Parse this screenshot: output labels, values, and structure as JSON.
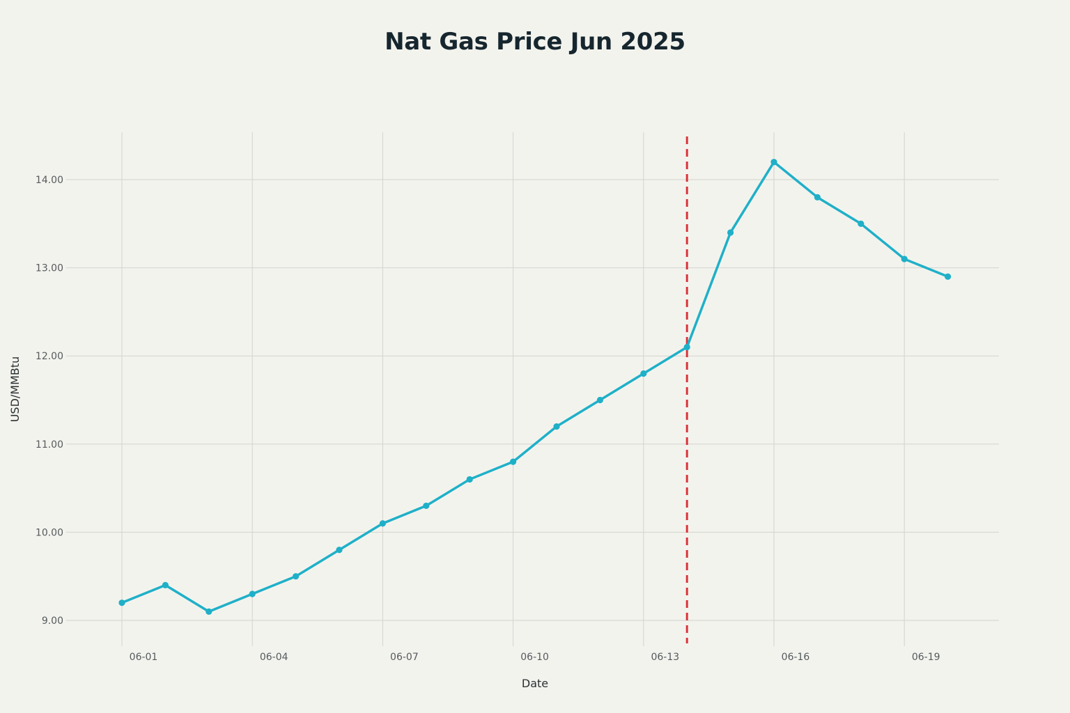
{
  "chart_data": {
    "type": "line",
    "title": "Nat Gas Price Jun 2025",
    "xlabel": "Date",
    "ylabel": "USD/MMBtu",
    "x": [
      "06-01",
      "06-02",
      "06-03",
      "06-04",
      "06-05",
      "06-06",
      "06-07",
      "06-08",
      "06-09",
      "06-10",
      "06-11",
      "06-12",
      "06-13",
      "06-14",
      "06-15",
      "06-16",
      "06-17",
      "06-18",
      "06-19",
      "06-20"
    ],
    "x_tick_labels": [
      "06-01",
      "06-04",
      "06-07",
      "06-10",
      "06-13",
      "06-16",
      "06-19"
    ],
    "series": [
      {
        "name": "Nat Gas Price",
        "values": [
          9.2,
          9.4,
          9.1,
          9.3,
          9.5,
          9.8,
          10.1,
          10.3,
          10.6,
          10.8,
          11.2,
          11.5,
          11.8,
          12.1,
          13.4,
          14.2,
          13.8,
          13.5,
          13.1,
          12.9
        ],
        "color": "#1fb0c8"
      }
    ],
    "y_ticks": [
      "9.00",
      "10.00",
      "11.00",
      "12.00",
      "13.00",
      "14.00"
    ],
    "ylim": [
      8.9,
      14.5
    ],
    "grid": true,
    "annotations": [
      {
        "type": "vertical-dashed-line",
        "at": "06-14",
        "color": "#d9353a"
      }
    ]
  }
}
